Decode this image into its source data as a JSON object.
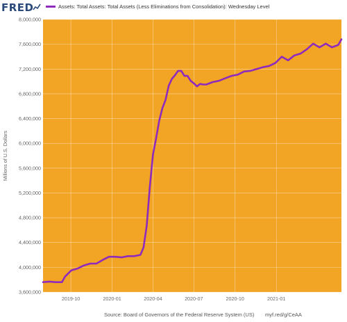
{
  "header": {
    "logo_text": "FRED",
    "logo_icon": "trend-line-icon",
    "legend_label": "Assets: Total Assets: Total Assets (Less Eliminations from Consolidation): Wednesday Level"
  },
  "footer": {
    "source": "Source: Board of Governors of the Federal Reserve System (US)",
    "url": "myf.red/g/CeAA"
  },
  "colors": {
    "plot_background": "#f2a424",
    "series": "#8e2bbd",
    "axis_text": "#666666",
    "gridline": "#ffffff"
  },
  "chart_data": {
    "type": "line",
    "title": "",
    "xlabel": "",
    "ylabel": "Millions of U.S. Dollars",
    "ylim": [
      3600000,
      8000000
    ],
    "xlim": [
      "2019-07-31",
      "2021-05-26"
    ],
    "y_ticks": [
      3600000,
      4000000,
      4400000,
      4800000,
      5200000,
      5600000,
      6000000,
      6400000,
      6800000,
      7200000,
      7600000,
      8000000
    ],
    "y_tick_labels": [
      "3,600,000",
      "4,000,000",
      "4,400,000",
      "4,800,000",
      "5,200,000",
      "5,600,000",
      "6,000,000",
      "6,400,000",
      "6,800,000",
      "7,200,000",
      "7,600,000",
      "8,000,000"
    ],
    "x_ticks": [
      "2019-10-01",
      "2020-01-01",
      "2020-04-01",
      "2020-07-01",
      "2020-10-01",
      "2021-01-01"
    ],
    "x_tick_labels": [
      "2019-10",
      "2020-01",
      "2020-04",
      "2020-07",
      "2020-10",
      "2021-01"
    ],
    "grid": true,
    "legend": "top",
    "series": [
      {
        "name": "Assets: Total Assets: Total Assets (Less Eliminations from Consolidation): Wednesday Level",
        "color": "#8e2bbd",
        "x": [
          "2019-07-31",
          "2019-08-14",
          "2019-08-28",
          "2019-09-11",
          "2019-09-18",
          "2019-10-02",
          "2019-10-16",
          "2019-10-30",
          "2019-11-13",
          "2019-11-27",
          "2019-12-11",
          "2019-12-25",
          "2020-01-08",
          "2020-01-22",
          "2020-02-05",
          "2020-02-19",
          "2020-03-04",
          "2020-03-11",
          "2020-03-18",
          "2020-03-25",
          "2020-04-01",
          "2020-04-08",
          "2020-04-15",
          "2020-04-22",
          "2020-04-29",
          "2020-05-06",
          "2020-05-13",
          "2020-05-20",
          "2020-05-27",
          "2020-06-03",
          "2020-06-10",
          "2020-06-17",
          "2020-06-24",
          "2020-07-01",
          "2020-07-08",
          "2020-07-15",
          "2020-07-22",
          "2020-07-29",
          "2020-08-12",
          "2020-08-26",
          "2020-09-09",
          "2020-09-23",
          "2020-10-07",
          "2020-10-21",
          "2020-11-04",
          "2020-11-18",
          "2020-12-02",
          "2020-12-16",
          "2020-12-30",
          "2021-01-13",
          "2021-01-27",
          "2021-02-10",
          "2021-02-24",
          "2021-03-10",
          "2021-03-24",
          "2021-04-07",
          "2021-04-21",
          "2021-05-05",
          "2021-05-19",
          "2021-05-26"
        ],
        "values": [
          3760000,
          3770000,
          3760000,
          3760000,
          3850000,
          3950000,
          3980000,
          4030000,
          4060000,
          4060000,
          4120000,
          4170000,
          4170000,
          4160000,
          4180000,
          4180000,
          4200000,
          4320000,
          4670000,
          5300000,
          5820000,
          6080000,
          6370000,
          6570000,
          6700000,
          6930000,
          7040000,
          7100000,
          7170000,
          7170000,
          7090000,
          7090000,
          7010000,
          6970000,
          6920000,
          6960000,
          6950000,
          6950000,
          6990000,
          7010000,
          7050000,
          7090000,
          7110000,
          7160000,
          7170000,
          7200000,
          7230000,
          7250000,
          7300000,
          7400000,
          7340000,
          7420000,
          7450000,
          7520000,
          7610000,
          7550000,
          7610000,
          7550000,
          7590000,
          7680000
        ]
      }
    ]
  }
}
